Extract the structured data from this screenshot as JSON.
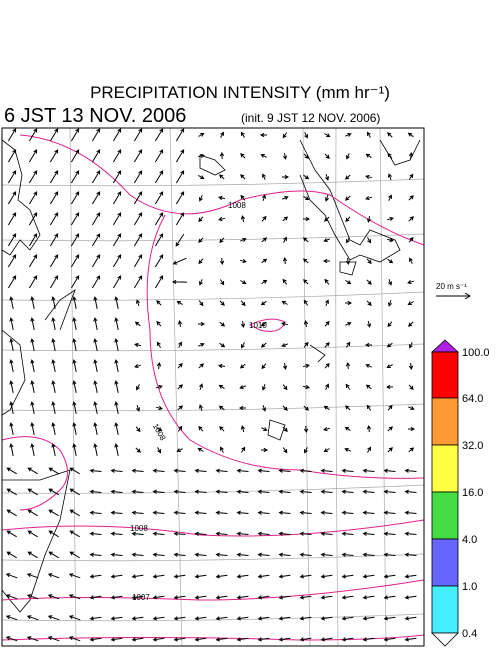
{
  "header": {
    "title": "PRECIPITATION INTENSITY (mm hr⁻¹)",
    "valid_time": "6 JST 13 NOV. 2006",
    "init_time": "(init. 9 JST 12 NOV. 2006)"
  },
  "reference_vector": {
    "label": "20 m s⁻¹"
  },
  "colorbar": {
    "labels": [
      "100.0",
      "64.0",
      "32.0",
      "16.0",
      "4.0",
      "1.0",
      "0.4"
    ]
  },
  "contours": [
    {
      "label": "1008"
    },
    {
      "label": "1010"
    },
    {
      "label": "1008"
    },
    {
      "label": "1008"
    },
    {
      "label": "1007"
    }
  ]
}
